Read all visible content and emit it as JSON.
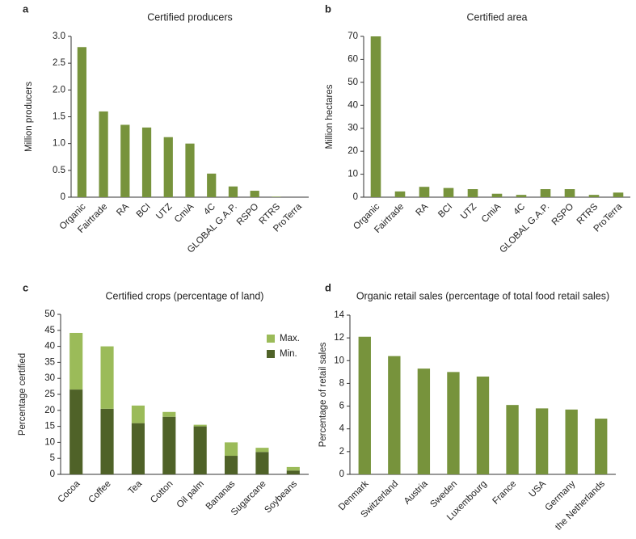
{
  "chart_data": [
    {
      "type": "bar",
      "label": "a",
      "title": "Certified producers",
      "y_label": "Million producers",
      "categories": [
        "Organic",
        "Fairtrade",
        "RA",
        "BCI",
        "UTZ",
        "CmiA",
        "4C",
        "GLOBAL G.A.P.",
        "RSPO",
        "RTRS",
        "ProTerra"
      ],
      "values": [
        2.8,
        1.6,
        1.35,
        1.3,
        1.12,
        1.0,
        0.44,
        0.2,
        0.12,
        0.01,
        0
      ],
      "color": "#77933c",
      "ylim": [
        0,
        3
      ],
      "yticks": [
        0,
        0.5,
        {
          "value": 1,
          "label": "1.0"
        },
        1.5,
        {
          "value": 2,
          "label": "2.0"
        },
        2.5,
        {
          "value": 3,
          "label": "3.0"
        }
      ]
    },
    {
      "type": "bar",
      "label": "b",
      "title": "Certified area",
      "y_label": "Million hectares",
      "categories": [
        "Organic",
        "Fairtrade",
        "RA",
        "BCI",
        "UTZ",
        "CmiA",
        "4C",
        "GLOBAL G.A.P.",
        "RSPO",
        "RTRS",
        "ProTerra"
      ],
      "values": [
        70,
        2.5,
        4.5,
        4,
        3.5,
        1.5,
        1,
        3.5,
        3.5,
        1,
        2
      ],
      "color": "#77933c",
      "ylim": [
        0,
        70
      ],
      "yticks": [
        0,
        10,
        20,
        30,
        40,
        50,
        60,
        70
      ]
    },
    {
      "type": "stacked_bar",
      "label": "c",
      "title": "Certified crops (percentage of land)",
      "y_label": "Percentage certified",
      "categories": [
        "Cocoa",
        "Coffee",
        "Tea",
        "Cotton",
        "Oil palm",
        "Bananas",
        "Sugarcane",
        "Soybeans"
      ],
      "series": [
        {
          "name": "Min.",
          "color": "#4f6228",
          "values": [
            26.5,
            20.5,
            16,
            18,
            15,
            5.8,
            7,
            1.2
          ]
        },
        {
          "name": "Max.",
          "color": "#9bbb59",
          "values": [
            17.7,
            19.5,
            5.5,
            1.5,
            0.5,
            4.2,
            1.3,
            1.1
          ]
        }
      ],
      "ylim": [
        0,
        50
      ],
      "yticks": [
        0,
        5,
        10,
        15,
        20,
        25,
        30,
        35,
        40,
        45,
        50
      ],
      "legend": "upper right"
    },
    {
      "type": "bar",
      "label": "d",
      "title": "Organic retail sales (percentage of total food retail sales)",
      "y_label": "Percentage of retail sales",
      "categories": [
        "Denmark",
        "Switzerland",
        "Austria",
        "Sweden",
        "Luxembourg",
        "France",
        "USA",
        "Germany",
        "the Netherlands"
      ],
      "values": [
        12.1,
        10.4,
        9.3,
        9.0,
        8.6,
        6.1,
        5.8,
        5.7,
        4.9
      ],
      "color": "#77933c",
      "ylim": [
        0,
        14
      ],
      "yticks": [
        0,
        2,
        4,
        6,
        8,
        10,
        12,
        14
      ]
    }
  ]
}
